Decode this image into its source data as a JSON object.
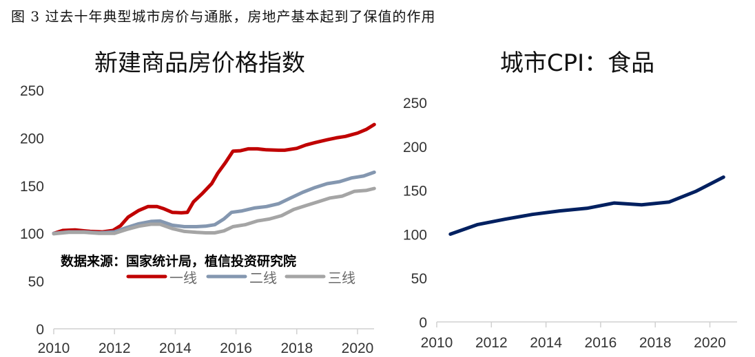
{
  "caption": "图 3 过去十年典型城市房价与通胀，房地产基本起到了保值的作用",
  "chart_data": [
    {
      "type": "line",
      "title": "新建商品房价格指数",
      "xlabel": "",
      "ylabel": "",
      "ylim": [
        0,
        250
      ],
      "yticks": [
        "0",
        "50",
        "100",
        "150",
        "200",
        "250"
      ],
      "xlim": [
        2010,
        2020.55
      ],
      "xticks": [
        "2010",
        "2012",
        "2014",
        "2016",
        "2018",
        "2020"
      ],
      "grid": false,
      "source_note": "数据来源：国家统计局，植信投资研究院",
      "legend": "center",
      "series": [
        {
          "name": "一线",
          "color": "#c00000",
          "x": [
            2010.0,
            2010.3,
            2010.7,
            2011.2,
            2011.6,
            2011.95,
            2012.2,
            2012.45,
            2012.8,
            2013.1,
            2013.4,
            2013.6,
            2013.9,
            2014.2,
            2014.4,
            2014.6,
            2014.9,
            2015.2,
            2015.4,
            2015.65,
            2015.9,
            2016.15,
            2016.4,
            2016.7,
            2017.0,
            2017.4,
            2017.6,
            2018.0,
            2018.3,
            2018.6,
            2019.0,
            2019.3,
            2019.6,
            2020.0,
            2020.3,
            2020.55
          ],
          "y": [
            100,
            103,
            103.5,
            102,
            101.5,
            103,
            108,
            117,
            124,
            128,
            128,
            126,
            122,
            121.5,
            122,
            133,
            142,
            152,
            163,
            174,
            186,
            186.5,
            188.5,
            188.5,
            187.5,
            187,
            187,
            189,
            192.5,
            195,
            198,
            200,
            201.5,
            205,
            209,
            214
          ]
        },
        {
          "name": "二线",
          "color": "#8497b0",
          "x": [
            2010.0,
            2010.5,
            2011.0,
            2011.5,
            2012.0,
            2012.4,
            2012.8,
            2013.2,
            2013.5,
            2013.9,
            2014.3,
            2014.7,
            2015.0,
            2015.3,
            2015.6,
            2015.85,
            2016.2,
            2016.6,
            2017.0,
            2017.4,
            2017.8,
            2018.2,
            2018.6,
            2019.0,
            2019.4,
            2019.8,
            2020.2,
            2020.55
          ],
          "y": [
            100,
            101.5,
            101.5,
            100.5,
            101.5,
            106,
            110,
            112.5,
            113,
            108.5,
            107,
            107,
            107.5,
            109,
            115,
            122,
            123.5,
            126.5,
            128,
            131,
            137,
            143,
            148,
            152,
            154,
            158,
            160,
            164
          ]
        },
        {
          "name": "三线",
          "color": "#a5a5a5",
          "x": [
            2010.0,
            2010.5,
            2011.0,
            2011.5,
            2012.0,
            2012.4,
            2012.8,
            2013.2,
            2013.5,
            2013.9,
            2014.3,
            2014.7,
            2015.0,
            2015.3,
            2015.6,
            2015.9,
            2016.3,
            2016.7,
            2017.1,
            2017.5,
            2017.9,
            2018.3,
            2018.7,
            2019.1,
            2019.5,
            2019.9,
            2020.3,
            2020.55
          ],
          "y": [
            99.5,
            101,
            101,
            100,
            100,
            104,
            107.5,
            109.5,
            109.5,
            105,
            102,
            101,
            100.5,
            100.5,
            102.5,
            107,
            109,
            113,
            115,
            118.5,
            125,
            129,
            133,
            137,
            139,
            144,
            145,
            147
          ]
        }
      ]
    },
    {
      "type": "line",
      "title": "城市CPI：食品",
      "xlabel": "",
      "ylabel": "",
      "ylim": [
        0,
        250
      ],
      "yticks": [
        "0",
        "50",
        "100",
        "150",
        "200",
        "250"
      ],
      "xlim": [
        2010,
        2020.55
      ],
      "xticks": [
        "2010",
        "2012",
        "2014",
        "2016",
        "2018",
        "2020"
      ],
      "grid": false,
      "series": [
        {
          "name": "城市CPI：食品",
          "color": "#002060",
          "x": [
            2010.5,
            2011.5,
            2012.5,
            2013.5,
            2014.5,
            2015.5,
            2016.5,
            2017.5,
            2018.5,
            2019.5,
            2020.5
          ],
          "y": [
            100,
            111,
            117,
            122.5,
            126.5,
            129.5,
            135.5,
            133.5,
            136.5,
            149,
            165
          ]
        }
      ]
    }
  ]
}
